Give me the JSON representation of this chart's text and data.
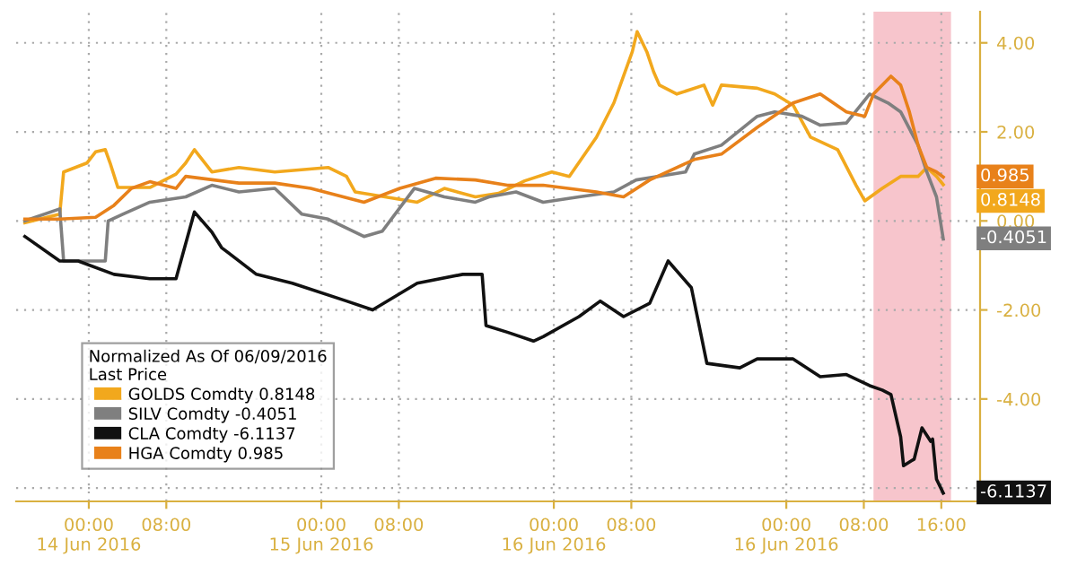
{
  "chart_data": {
    "type": "line",
    "legend_title": "Normalized As Of 06/09/2016\nLast Price",
    "legend": "lower left",
    "grid": true,
    "line_style": "solid",
    "marker": "none",
    "xlim": [
      "2016-06-13T16:30",
      "2016-06-17T20:00"
    ],
    "xticks": [
      {
        "value": "2016-06-14T00:00",
        "label": "00:00\n14 Jun 2016"
      },
      {
        "value": "2016-06-14T08:00",
        "label": "08:00"
      },
      {
        "value": "2016-06-15T00:00",
        "label": "00:00\n15 Jun 2016"
      },
      {
        "value": "2016-06-15T08:00",
        "label": "08:00"
      },
      {
        "value": "2016-06-16T00:00",
        "label": "00:00\n16 Jun 2016"
      },
      {
        "value": "2016-06-16T08:00",
        "label": "08:00"
      },
      {
        "value": "2016-06-17T00:00",
        "label": "00:00\n16 Jun 2016"
      },
      {
        "value": "2016-06-17T08:00",
        "label": "08:00"
      },
      {
        "value": "2016-06-17T16:00",
        "label": "16:00"
      }
    ],
    "ylim": [
      -6.3,
      4.7
    ],
    "yticks": [
      {
        "value": 4,
        "label": "4.00"
      },
      {
        "value": 2,
        "label": "2.00"
      },
      {
        "value": 0,
        "label": "0.00"
      },
      {
        "value": -2,
        "label": "-2.00"
      },
      {
        "value": -4,
        "label": "-4.00"
      },
      {
        "value": -6,
        "label": null
      }
    ],
    "bands": [
      {
        "axis": "x",
        "from": "2016-06-17T09:00",
        "to": "2016-06-17T17:00",
        "color": "#f7c5cc"
      }
    ],
    "series": [
      {
        "name": "GOLDS Comdty 0.8148",
        "color": "#f2a81d",
        "x": [
          "2016-06-13T17:24",
          "2016-06-13T21:00",
          "2016-06-13T21:24",
          "2016-06-13T23:48",
          "2016-06-14T00:42",
          "2016-06-14T01:42",
          "2016-06-14T02:12",
          "2016-06-14T03:00",
          "2016-06-14T06:18",
          "2016-06-14T09:00",
          "2016-06-14T10:00",
          "2016-06-14T10:54",
          "2016-06-14T12:42",
          "2016-06-14T15:30",
          "2016-06-14T19:12",
          "2016-06-15T00:42",
          "2016-06-15T02:36",
          "2016-06-15T03:30",
          "2016-06-15T06:18",
          "2016-06-15T09:54",
          "2016-06-15T12:42",
          "2016-06-15T15:54",
          "2016-06-15T18:18",
          "2016-06-15T21:00",
          "2016-06-15T23:48",
          "2016-06-16T01:36",
          "2016-06-16T04:24",
          "2016-06-16T06:12",
          "2016-06-16T08:06",
          "2016-06-16T08:36",
          "2016-06-16T09:36",
          "2016-06-16T10:18",
          "2016-06-16T10:54",
          "2016-06-16T12:42",
          "2016-06-16T15:30",
          "2016-06-16T16:24",
          "2016-06-16T17:18",
          "2016-06-16T21:00",
          "2016-06-16T22:48",
          "2016-06-17T00:42",
          "2016-06-17T02:30",
          "2016-06-17T05:18",
          "2016-06-17T07:12",
          "2016-06-17T08:06",
          "2016-06-17T09:54",
          "2016-06-17T11:48",
          "2016-06-17T13:36",
          "2016-06-17T14:30",
          "2016-06-17T15:30",
          "2016-06-17T16:12"
        ],
        "values": [
          -0.04,
          0.15,
          1.1,
          1.3,
          1.55,
          1.6,
          1.3,
          0.75,
          0.75,
          1.05,
          1.3,
          1.6,
          1.1,
          1.2,
          1.1,
          1.2,
          1.0,
          0.65,
          0.55,
          0.42,
          0.73,
          0.54,
          0.62,
          0.9,
          1.1,
          1.0,
          1.88,
          2.65,
          3.8,
          4.25,
          3.8,
          3.35,
          3.05,
          2.85,
          3.05,
          2.6,
          3.05,
          2.98,
          2.85,
          2.6,
          1.88,
          1.6,
          0.8,
          0.45,
          0.73,
          1.0,
          1.0,
          1.2,
          1.0,
          0.8148
        ]
      },
      {
        "name": "SILV Comdty -0.4051",
        "color": "#7f7f7f",
        "x": [
          "2016-06-13T17:24",
          "2016-06-13T21:00",
          "2016-06-13T21:24",
          "2016-06-14T01:42",
          "2016-06-14T02:00",
          "2016-06-14T03:30",
          "2016-06-14T06:18",
          "2016-06-14T10:00",
          "2016-06-14T12:42",
          "2016-06-14T15:30",
          "2016-06-14T19:12",
          "2016-06-14T22:00",
          "2016-06-15T00:42",
          "2016-06-15T04:24",
          "2016-06-15T06:18",
          "2016-06-15T09:36",
          "2016-06-15T12:42",
          "2016-06-15T15:54",
          "2016-06-15T17:18",
          "2016-06-15T20:06",
          "2016-06-15T22:54",
          "2016-06-16T02:36",
          "2016-06-16T06:12",
          "2016-06-16T08:30",
          "2016-06-16T13:36",
          "2016-06-16T14:30",
          "2016-06-16T17:18",
          "2016-06-16T21:00",
          "2016-06-16T22:48",
          "2016-06-17T01:36",
          "2016-06-17T03:30",
          "2016-06-17T06:12",
          "2016-06-17T08:36",
          "2016-06-17T10:30",
          "2016-06-17T11:48",
          "2016-06-17T13:36",
          "2016-06-17T14:30",
          "2016-06-17T15:30",
          "2016-06-17T15:54",
          "2016-06-17T16:12"
        ],
        "values": [
          0.0,
          0.27,
          -0.9,
          -0.9,
          0.0,
          0.15,
          0.42,
          0.54,
          0.8,
          0.65,
          0.73,
          0.15,
          0.04,
          -0.35,
          -0.23,
          0.73,
          0.54,
          0.42,
          0.54,
          0.65,
          0.42,
          0.54,
          0.65,
          0.92,
          1.1,
          1.5,
          1.7,
          2.35,
          2.45,
          2.35,
          2.15,
          2.2,
          2.85,
          2.65,
          2.45,
          1.7,
          1.1,
          0.54,
          0.0,
          -0.4051
        ]
      },
      {
        "name": "CLA Comdty -6.1137",
        "color": "#111111",
        "x": [
          "2016-06-13T17:24",
          "2016-06-13T21:00",
          "2016-06-13T22:54",
          "2016-06-14T02:36",
          "2016-06-14T06:18",
          "2016-06-14T09:00",
          "2016-06-14T10:54",
          "2016-06-14T12:42",
          "2016-06-14T13:42",
          "2016-06-14T17:18",
          "2016-06-14T21:00",
          "2016-06-15T02:36",
          "2016-06-15T05:18",
          "2016-06-15T09:54",
          "2016-06-15T14:36",
          "2016-06-15T16:36",
          "2016-06-15T17:00",
          "2016-06-15T19:12",
          "2016-06-15T21:54",
          "2016-06-15T22:54",
          "2016-06-16T02:36",
          "2016-06-16T04:48",
          "2016-06-16T07:12",
          "2016-06-16T09:54",
          "2016-06-16T11:48",
          "2016-06-16T14:12",
          "2016-06-16T15:48",
          "2016-06-16T19:12",
          "2016-06-16T21:00",
          "2016-06-17T00:42",
          "2016-06-17T03:30",
          "2016-06-17T06:12",
          "2016-06-17T08:36",
          "2016-06-17T09:54",
          "2016-06-17T10:48",
          "2016-06-17T11:48",
          "2016-06-17T12:06",
          "2016-06-17T13:12",
          "2016-06-17T14:00",
          "2016-06-17T14:54",
          "2016-06-17T15:06",
          "2016-06-17T15:30",
          "2016-06-17T16:12"
        ],
        "values": [
          -0.35,
          -0.9,
          -0.9,
          -1.2,
          -1.3,
          -1.3,
          0.2,
          -0.25,
          -0.6,
          -1.2,
          -1.4,
          -1.8,
          -2.0,
          -1.4,
          -1.2,
          -1.2,
          -2.35,
          -2.5,
          -2.7,
          -2.6,
          -2.15,
          -1.8,
          -2.15,
          -1.85,
          -0.9,
          -1.5,
          -3.2,
          -3.3,
          -3.1,
          -3.1,
          -3.5,
          -3.45,
          -3.7,
          -3.8,
          -3.9,
          -4.85,
          -5.5,
          -5.35,
          -4.65,
          -4.95,
          -4.9,
          -5.8,
          -6.1137
        ]
      },
      {
        "name": "HGA Comdty 0.985",
        "color": "#e8811a",
        "x": [
          "2016-06-13T17:24",
          "2016-06-13T21:00",
          "2016-06-14T00:42",
          "2016-06-14T02:36",
          "2016-06-14T04:24",
          "2016-06-14T06:18",
          "2016-06-14T09:00",
          "2016-06-14T10:00",
          "2016-06-14T15:30",
          "2016-06-14T19:12",
          "2016-06-14T22:54",
          "2016-06-15T04:24",
          "2016-06-15T08:06",
          "2016-06-15T11:48",
          "2016-06-15T15:54",
          "2016-06-15T19:12",
          "2016-06-15T22:54",
          "2016-06-16T04:24",
          "2016-06-16T07:12",
          "2016-06-16T09:54",
          "2016-06-16T14:30",
          "2016-06-16T17:18",
          "2016-06-16T21:00",
          "2016-06-17T00:42",
          "2016-06-17T03:30",
          "2016-06-17T06:12",
          "2016-06-17T08:06",
          "2016-06-17T09:00",
          "2016-06-17T10:48",
          "2016-06-17T11:48",
          "2016-06-17T12:42",
          "2016-06-17T13:36",
          "2016-06-17T14:30",
          "2016-06-17T15:30",
          "2016-06-17T16:12"
        ],
        "values": [
          0.04,
          0.04,
          0.08,
          0.35,
          0.73,
          0.88,
          0.73,
          1.0,
          0.85,
          0.85,
          0.73,
          0.42,
          0.73,
          0.96,
          0.92,
          0.8,
          0.8,
          0.65,
          0.54,
          0.92,
          1.38,
          1.5,
          2.1,
          2.65,
          2.85,
          2.45,
          2.35,
          2.85,
          3.25,
          3.05,
          2.45,
          1.7,
          1.2,
          1.1,
          0.985
        ]
      }
    ],
    "annotations": [
      {
        "text": "0.8148",
        "x": "2016-06-17T16:12",
        "y": 0.8148
      },
      {
        "text": "-0.4051",
        "x": "2016-06-17T16:12",
        "y": -0.4051
      },
      {
        "text": "-6.1137",
        "x": "2016-06-17T16:12",
        "y": -6.1137
      },
      {
        "text": "0.985",
        "x": "2016-06-17T16:12",
        "y": 0.985
      }
    ]
  }
}
